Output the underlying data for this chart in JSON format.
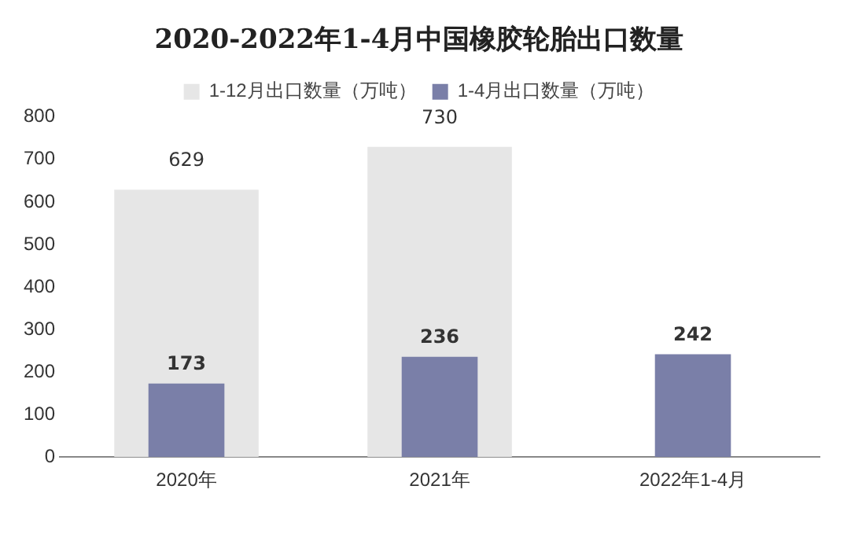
{
  "chart_data": {
    "type": "bar",
    "title": "2020-2022年1-4月中国橡胶轮胎出口数量",
    "categories": [
      "2020年",
      "2021年",
      "2022年1-4月"
    ],
    "series": [
      {
        "name": "1-12月出口数量（万吨）",
        "color": "#e6e6e6",
        "values": [
          629,
          730,
          null
        ]
      },
      {
        "name": "1-4月出口数量（万吨）",
        "color": "#7a7fa8",
        "values": [
          173,
          236,
          242
        ]
      }
    ],
    "ylim": [
      0,
      800
    ],
    "yticks": [
      0,
      100,
      200,
      300,
      400,
      500,
      600,
      700,
      800
    ],
    "grid": false,
    "legend": "top",
    "data_labels": true
  }
}
